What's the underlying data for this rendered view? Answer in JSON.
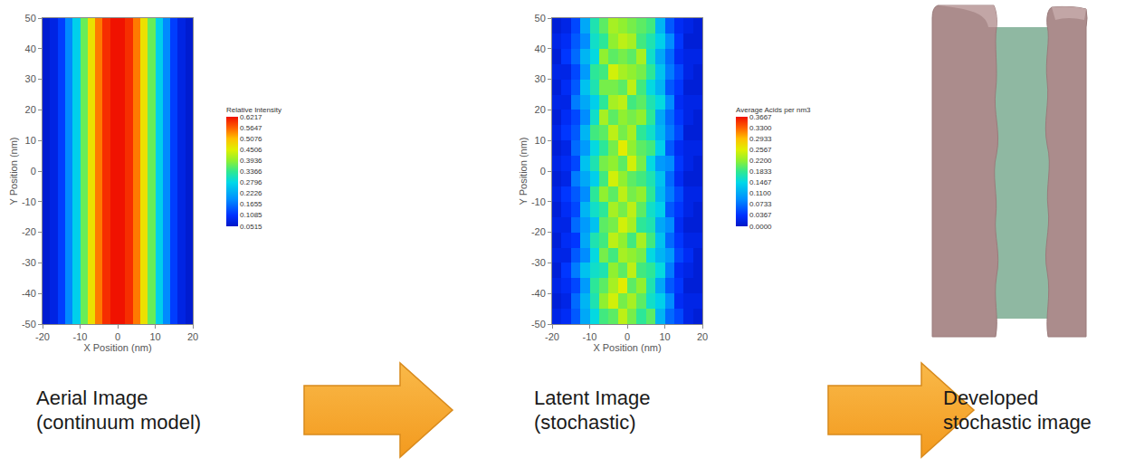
{
  "chart_data": [
    {
      "type": "heatmap",
      "x_label": "X Position (nm)",
      "y_label": "Y Position (nm)",
      "xlim": [
        -20,
        20
      ],
      "ylim": [
        -50,
        50
      ],
      "xticks": [
        -20,
        -10,
        0,
        10,
        20
      ],
      "yticks": [
        -50,
        -40,
        -30,
        -20,
        -10,
        0,
        10,
        20,
        30,
        40,
        50
      ],
      "cells": {
        "x_edges": [
          -20,
          -18,
          -16,
          -14,
          -12,
          -10,
          -8,
          -6,
          -4,
          -2,
          0,
          2,
          4,
          6,
          8,
          10,
          12,
          14,
          16,
          18,
          20
        ],
        "y_edges": [
          -50,
          50
        ],
        "z": [
          [
            0.06,
            0.08,
            0.12,
            0.19,
            0.27,
            0.37,
            0.47,
            0.55,
            0.6,
            0.62,
            0.62,
            0.6,
            0.55,
            0.47,
            0.37,
            0.27,
            0.19,
            0.12,
            0.08,
            0.06
          ]
        ]
      },
      "colorbar": {
        "title": "Relative Intensity",
        "range": [
          0.0515,
          0.6217
        ],
        "ticks": [
          0.6217,
          0.5647,
          0.5076,
          0.4506,
          0.3936,
          0.3366,
          0.2796,
          0.2226,
          0.1655,
          0.1085,
          0.0515
        ]
      }
    },
    {
      "type": "heatmap",
      "x_label": "X Position (nm)",
      "y_label": "Y Position (nm)",
      "xlim": [
        -20,
        20
      ],
      "ylim": [
        -50,
        50
      ],
      "xticks": [
        -20,
        -10,
        0,
        10,
        20
      ],
      "yticks": [
        -50,
        -40,
        -30,
        -20,
        -10,
        0,
        10,
        20,
        30,
        40,
        50
      ],
      "cells": {
        "x_edges": [
          -20,
          -17.5,
          -15,
          -12.5,
          -10,
          -7.5,
          -5,
          -2.5,
          0,
          2.5,
          5,
          7.5,
          10,
          12.5,
          15,
          17.5,
          20
        ],
        "y_edges": [
          -50,
          -45,
          -40,
          -35,
          -30,
          -25,
          -20,
          -15,
          -10,
          -5,
          0,
          5,
          10,
          15,
          20,
          25,
          30,
          35,
          40,
          45,
          50
        ],
        "z": [
          [
            0.02,
            0.03,
            0.06,
            0.11,
            0.15,
            0.19,
            0.2,
            0.24,
            0.21,
            0.18,
            0.2,
            0.12,
            0.07,
            0.05,
            0.02,
            0.01
          ],
          [
            0.01,
            0.02,
            0.07,
            0.12,
            0.17,
            0.22,
            0.25,
            0.21,
            0.23,
            0.2,
            0.16,
            0.14,
            0.09,
            0.03,
            0.02,
            0.02
          ],
          [
            0.02,
            0.03,
            0.05,
            0.1,
            0.18,
            0.2,
            0.23,
            0.26,
            0.2,
            0.22,
            0.17,
            0.11,
            0.06,
            0.04,
            0.01,
            0.01
          ],
          [
            0.01,
            0.04,
            0.08,
            0.13,
            0.16,
            0.17,
            0.22,
            0.2,
            0.24,
            0.19,
            0.18,
            0.15,
            0.08,
            0.03,
            0.02,
            0.01
          ],
          [
            0.02,
            0.02,
            0.06,
            0.09,
            0.15,
            0.21,
            0.19,
            0.23,
            0.22,
            0.21,
            0.15,
            0.12,
            0.1,
            0.05,
            0.03,
            0.01
          ],
          [
            0.01,
            0.03,
            0.04,
            0.11,
            0.17,
            0.19,
            0.24,
            0.22,
            0.19,
            0.23,
            0.19,
            0.13,
            0.07,
            0.04,
            0.02,
            0.02
          ],
          [
            0.02,
            0.02,
            0.07,
            0.1,
            0.13,
            0.2,
            0.21,
            0.25,
            0.23,
            0.18,
            0.17,
            0.11,
            0.09,
            0.03,
            0.01,
            0.01
          ],
          [
            0.01,
            0.03,
            0.05,
            0.12,
            0.16,
            0.18,
            0.23,
            0.21,
            0.24,
            0.2,
            0.16,
            0.14,
            0.06,
            0.04,
            0.02,
            0.01
          ],
          [
            0.02,
            0.04,
            0.06,
            0.09,
            0.18,
            0.22,
            0.2,
            0.24,
            0.21,
            0.22,
            0.18,
            0.12,
            0.08,
            0.05,
            0.02,
            0.02
          ],
          [
            0.01,
            0.02,
            0.08,
            0.11,
            0.14,
            0.19,
            0.25,
            0.22,
            0.2,
            0.19,
            0.17,
            0.13,
            0.07,
            0.03,
            0.01,
            0.01
          ],
          [
            0.02,
            0.03,
            0.05,
            0.13,
            0.17,
            0.21,
            0.22,
            0.2,
            0.25,
            0.21,
            0.15,
            0.1,
            0.09,
            0.04,
            0.02,
            0.01
          ],
          [
            0.01,
            0.02,
            0.07,
            0.1,
            0.15,
            0.18,
            0.21,
            0.26,
            0.22,
            0.2,
            0.19,
            0.14,
            0.06,
            0.03,
            0.02,
            0.02
          ],
          [
            0.02,
            0.04,
            0.06,
            0.12,
            0.19,
            0.2,
            0.24,
            0.21,
            0.23,
            0.18,
            0.16,
            0.12,
            0.08,
            0.05,
            0.01,
            0.01
          ],
          [
            0.01,
            0.03,
            0.05,
            0.09,
            0.16,
            0.23,
            0.2,
            0.22,
            0.21,
            0.22,
            0.18,
            0.11,
            0.07,
            0.04,
            0.02,
            0.01
          ],
          [
            0.02,
            0.02,
            0.08,
            0.11,
            0.14,
            0.18,
            0.23,
            0.24,
            0.19,
            0.2,
            0.17,
            0.15,
            0.09,
            0.03,
            0.02,
            0.02
          ],
          [
            0.01,
            0.03,
            0.06,
            0.13,
            0.17,
            0.21,
            0.21,
            0.2,
            0.24,
            0.19,
            0.15,
            0.12,
            0.06,
            0.04,
            0.01,
            0.01
          ],
          [
            0.02,
            0.02,
            0.05,
            0.1,
            0.18,
            0.19,
            0.25,
            0.23,
            0.22,
            0.21,
            0.18,
            0.13,
            0.08,
            0.05,
            0.02,
            0.01
          ],
          [
            0.01,
            0.04,
            0.07,
            0.12,
            0.15,
            0.22,
            0.2,
            0.21,
            0.2,
            0.23,
            0.16,
            0.11,
            0.07,
            0.03,
            0.02,
            0.02
          ],
          [
            0.02,
            0.03,
            0.06,
            0.09,
            0.16,
            0.18,
            0.22,
            0.24,
            0.23,
            0.19,
            0.17,
            0.14,
            0.09,
            0.04,
            0.01,
            0.01
          ],
          [
            0.01,
            0.02,
            0.05,
            0.11,
            0.17,
            0.2,
            0.23,
            0.22,
            0.21,
            0.2,
            0.19,
            0.12,
            0.06,
            0.03,
            0.02,
            0.01
          ]
        ]
      },
      "colorbar": {
        "title": "Average Acids per nm3",
        "range": [
          0,
          0.3667
        ],
        "ticks": [
          0.3667,
          {
            "value": 0.33,
            "label": "0.3300"
          },
          0.2933,
          0.2567,
          {
            "value": 0.22,
            "label": "0.2200"
          },
          0.1833,
          0.1467,
          {
            "value": 0.11,
            "label": "0.1100"
          },
          0.0733,
          0.0367,
          {
            "value": 0,
            "label": "0.0000"
          }
        ]
      }
    }
  ],
  "captions": [
    [
      "Aerial Image",
      "(continuum model)"
    ],
    [
      "Latent Image",
      "(stochastic)"
    ],
    [
      "Developed",
      "stochastic image"
    ]
  ]
}
